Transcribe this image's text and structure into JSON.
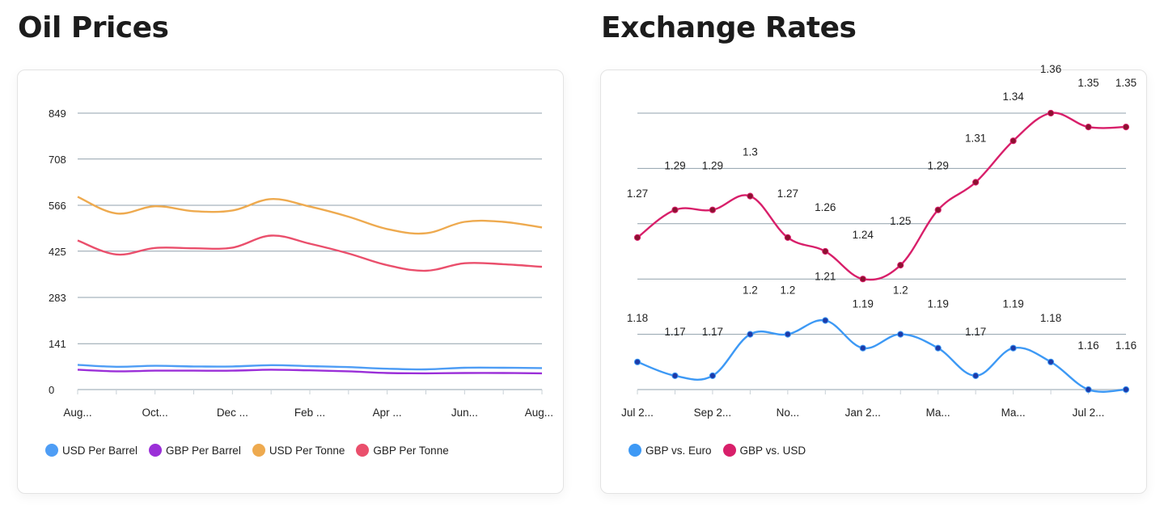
{
  "colors": {
    "usd_barrel": "#4e9df5",
    "gbp_barrel": "#9b2fd8",
    "usd_tonne": "#eeaa4f",
    "gbp_tonne": "#ea4f6c",
    "gbp_eur": "#3d99f5",
    "gbp_usd": "#d81f6a",
    "gbp_usd_marker": "#8b1230",
    "gbp_eur_marker": "#1d3aa8",
    "grid": "#90a0ac"
  },
  "chart_data": [
    {
      "type": "line",
      "title": "Oil Prices",
      "categories": [
        "Aug...",
        "",
        "Oct...",
        "",
        "Dec ...",
        "",
        "Feb ...",
        "",
        "Apr ...",
        "",
        "Jun...",
        "",
        "Aug..."
      ],
      "y_ticks": [
        "0",
        "141",
        "283",
        "425",
        "566",
        "708",
        "849"
      ],
      "ylim": [
        0,
        849
      ],
      "grid": true,
      "legend_position": "bottom-left",
      "series": [
        {
          "name": "USD Per Barrel",
          "color_key": "usd_barrel",
          "values": [
            76,
            70,
            73,
            71,
            71,
            75,
            72,
            69,
            64,
            62,
            67,
            67,
            66
          ]
        },
        {
          "name": "GBP Per Barrel",
          "color_key": "gbp_barrel",
          "values": [
            61,
            56,
            58,
            58,
            58,
            61,
            59,
            56,
            51,
            50,
            51,
            51,
            50
          ]
        },
        {
          "name": "USD Per Tonne",
          "color_key": "usd_tonne",
          "values": [
            592,
            541,
            563,
            548,
            550,
            585,
            562,
            531,
            493,
            480,
            515,
            515,
            498
          ]
        },
        {
          "name": "GBP Per Tonne",
          "color_key": "gbp_tonne",
          "values": [
            458,
            415,
            435,
            434,
            436,
            473,
            448,
            418,
            382,
            365,
            388,
            385,
            377
          ]
        }
      ]
    },
    {
      "type": "line",
      "title": "Exchange Rates",
      "categories": [
        "Jul 2...",
        "",
        "Sep 2...",
        "",
        "No...",
        "",
        "Jan 2...",
        "",
        "Ma...",
        "",
        "Ma...",
        "",
        "Jul 2...",
        ""
      ],
      "ylim": [
        1.16,
        1.36
      ],
      "grid": true,
      "legend_position": "bottom-left",
      "series": [
        {
          "name": "GBP vs. Euro",
          "color_key": "gbp_eur",
          "values": [
            1.18,
            1.17,
            1.17,
            1.2,
            1.2,
            1.21,
            1.19,
            1.2,
            1.19,
            1.17,
            1.19,
            1.18,
            1.16,
            1.16
          ]
        },
        {
          "name": "GBP vs. USD",
          "color_key": "gbp_usd",
          "values": [
            1.27,
            1.29,
            1.29,
            1.3,
            1.27,
            1.26,
            1.24,
            1.25,
            1.29,
            1.31,
            1.34,
            1.36,
            1.35,
            1.35
          ]
        }
      ]
    }
  ]
}
